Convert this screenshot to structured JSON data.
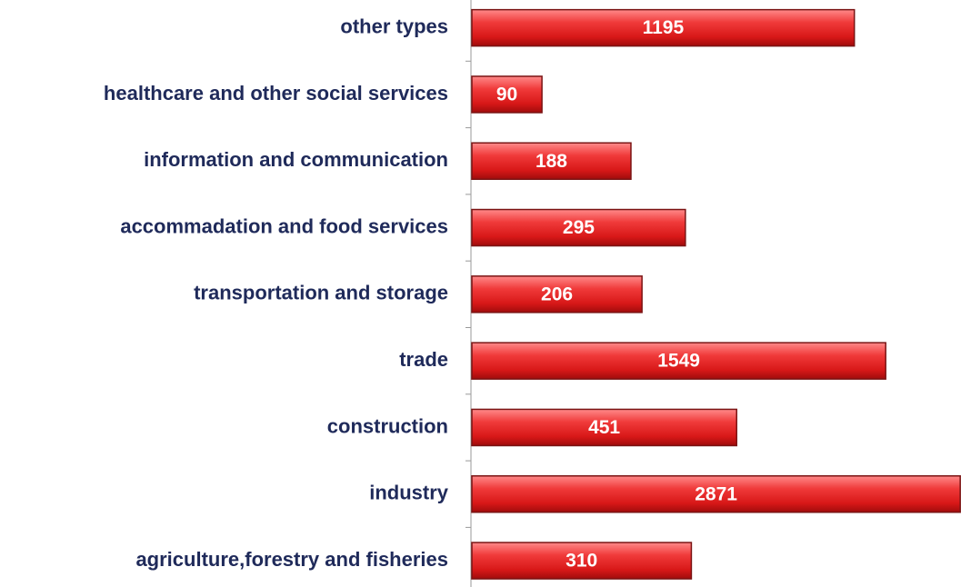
{
  "chart_data": {
    "type": "bar",
    "orientation": "horizontal",
    "categories": [
      "other types",
      "healthcare and other social services",
      "information and communication",
      "accommadation and food services",
      "transportation and storage",
      "trade",
      "construction",
      "industry",
      "agriculture,forestry and fisheries"
    ],
    "values": [
      1195,
      90,
      188,
      295,
      206,
      1549,
      451,
      2871,
      310
    ],
    "color": "#e52525",
    "xlim": [
      50,
      3000
    ],
    "log_x": true
  }
}
